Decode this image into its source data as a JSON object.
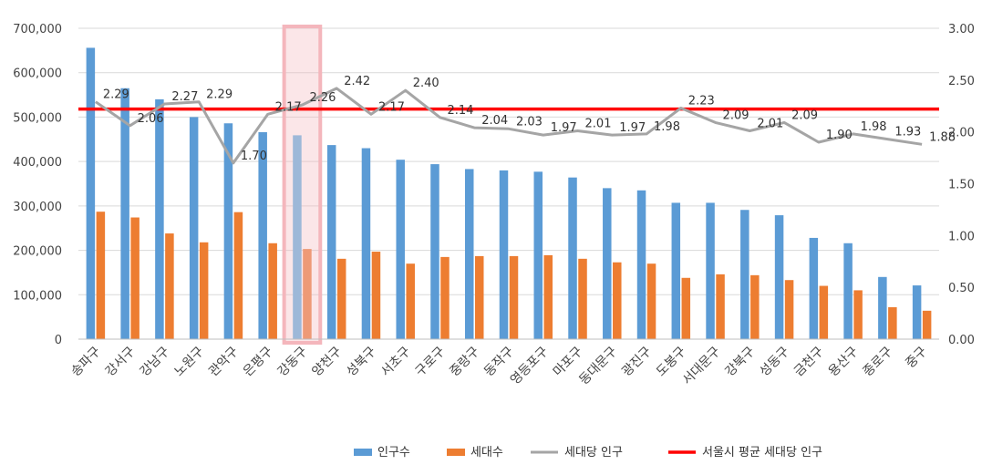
{
  "chart_data": {
    "type": "bar",
    "categories": [
      "송파구",
      "강서구",
      "강남구",
      "노원구",
      "관악구",
      "은평구",
      "강동구",
      "양천구",
      "성북구",
      "서초구",
      "구로구",
      "중랑구",
      "동작구",
      "영등포구",
      "마포구",
      "동대문구",
      "광진구",
      "도봉구",
      "서대문구",
      "강북구",
      "성동구",
      "금천구",
      "용산구",
      "종로구",
      "중구"
    ],
    "series": [
      {
        "name": "인구수",
        "type": "bar",
        "axis": "left",
        "color": "#5B9BD5",
        "values": [
          656000,
          565000,
          540000,
          500000,
          486000,
          466000,
          459000,
          437000,
          430000,
          404000,
          394000,
          383000,
          380000,
          377000,
          364000,
          340000,
          335000,
          307000,
          307000,
          291000,
          279000,
          228000,
          216000,
          140000,
          121000
        ]
      },
      {
        "name": "세대수",
        "type": "bar",
        "axis": "left",
        "color": "#ED7D31",
        "values": [
          287000,
          274000,
          238000,
          218000,
          286000,
          216000,
          203000,
          181000,
          197000,
          170000,
          185000,
          187000,
          187000,
          189000,
          181000,
          173000,
          170000,
          138000,
          146000,
          144000,
          133000,
          120000,
          110000,
          72000,
          64000
        ]
      },
      {
        "name": "세대당 인구",
        "type": "line",
        "axis": "right",
        "color": "#A5A5A5",
        "values": [
          2.29,
          2.06,
          2.27,
          2.29,
          1.7,
          2.17,
          2.26,
          2.42,
          2.17,
          2.4,
          2.14,
          2.04,
          2.03,
          1.97,
          2.01,
          1.97,
          1.98,
          2.23,
          2.09,
          2.01,
          2.09,
          1.9,
          1.98,
          1.93,
          1.88
        ],
        "labels": [
          "2.29",
          "2.06",
          "2.27",
          "2.29",
          "1.70",
          "2.17",
          "2.26",
          "2.42",
          "2.17",
          "2.40",
          "2.14",
          "2.04",
          "2.03",
          "1.97",
          "2.01",
          "1.97",
          "1.98",
          "2.23",
          "2.09",
          "2.01",
          "2.09",
          "1.90",
          "1.98",
          "1.93",
          "1.88"
        ]
      },
      {
        "name": "서울시 평균 세대당 인구",
        "type": "reference",
        "axis": "right",
        "color": "#FF0000",
        "value": 2.22
      }
    ],
    "yleft": {
      "min": 0,
      "max": 700000,
      "ticks": [
        "0",
        "100,000",
        "200,000",
        "300,000",
        "400,000",
        "500,000",
        "600,000",
        "700,000"
      ]
    },
    "yright": {
      "min": 0,
      "max": 3,
      "ticks": [
        "0.00",
        "0.50",
        "1.00",
        "1.50",
        "2.00",
        "2.50",
        "3.00"
      ]
    },
    "highlight": {
      "category": "강동구",
      "color": "#F4B6BC"
    },
    "gridlines": true,
    "legend_position": "bottom-right",
    "title": "",
    "xlabel": "",
    "ylabel": ""
  }
}
